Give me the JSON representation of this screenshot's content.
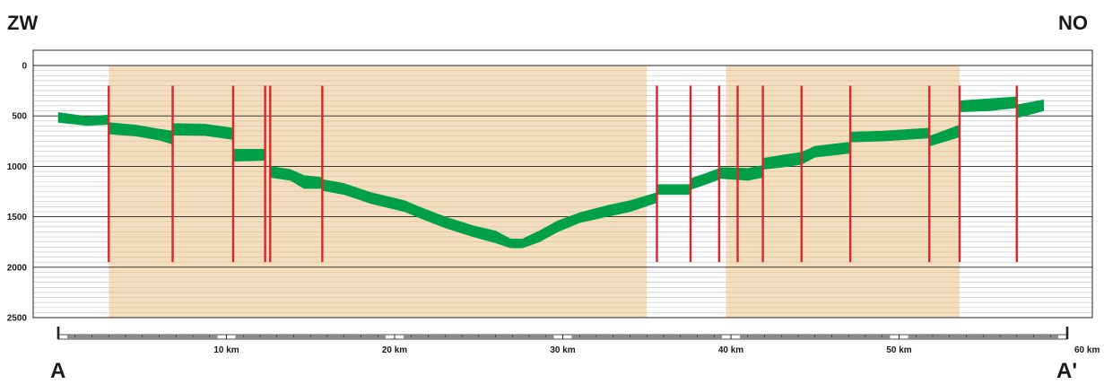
{
  "section": {
    "left_direction": "ZW",
    "right_direction": "NO",
    "left_point": "A",
    "right_point": "A'"
  },
  "depth_axis": {
    "ticks": [
      0,
      500,
      1000,
      1500,
      2000,
      2500
    ],
    "range": [
      0,
      2500
    ],
    "minor_step": 50
  },
  "distance_axis": {
    "range": [
      0,
      60
    ],
    "ticks": [
      {
        "km": 10,
        "label": "10 km"
      },
      {
        "km": 20,
        "label": "20 km"
      },
      {
        "km": 30,
        "label": "30 km"
      },
      {
        "km": 40,
        "label": "40 km"
      },
      {
        "km": 50,
        "label": "50 km"
      },
      {
        "km": 60,
        "label": "60 km"
      }
    ]
  },
  "zones": [
    {
      "from_km": 3.0,
      "to_km": 35.0
    },
    {
      "from_km": 39.7,
      "to_km": 53.6
    }
  ],
  "faults": [
    {
      "km": 3.0,
      "top": 200,
      "bottom": 1950
    },
    {
      "km": 6.8,
      "top": 200,
      "bottom": 1950
    },
    {
      "km": 10.4,
      "top": 200,
      "bottom": 1950
    },
    {
      "km": 12.3,
      "top": 200,
      "bottom": 1950
    },
    {
      "km": 12.6,
      "top": 200,
      "bottom": 1950
    },
    {
      "km": 15.7,
      "top": 200,
      "bottom": 1950
    },
    {
      "km": 35.6,
      "top": 200,
      "bottom": 1950
    },
    {
      "km": 37.6,
      "top": 200,
      "bottom": 1950
    },
    {
      "km": 39.3,
      "top": 200,
      "bottom": 1950
    },
    {
      "km": 40.4,
      "top": 200,
      "bottom": 1950
    },
    {
      "km": 41.9,
      "top": 200,
      "bottom": 1950
    },
    {
      "km": 44.2,
      "top": 200,
      "bottom": 1950
    },
    {
      "km": 47.1,
      "top": 200,
      "bottom": 1950
    },
    {
      "km": 51.8,
      "top": 200,
      "bottom": 1950
    },
    {
      "km": 53.6,
      "top": 200,
      "bottom": 1950
    },
    {
      "km": 57.0,
      "top": 200,
      "bottom": 1950
    }
  ],
  "layer": {
    "segments": [
      [
        [
          0.0,
          465,
          565
        ],
        [
          1.7,
          505,
          595
        ],
        [
          3.0,
          490,
          585
        ]
      ],
      [
        [
          3.0,
          565,
          680
        ],
        [
          4.6,
          590,
          700
        ],
        [
          6.0,
          630,
          740
        ],
        [
          6.8,
          650,
          780
        ]
      ],
      [
        [
          6.8,
          575,
          690
        ],
        [
          8.7,
          580,
          695
        ],
        [
          10.4,
          620,
          735
        ]
      ],
      [
        [
          10.4,
          830,
          950
        ],
        [
          12.3,
          830,
          940
        ]
      ],
      [
        [
          12.6,
          1000,
          1110
        ],
        [
          13.8,
          1030,
          1140
        ],
        [
          14.6,
          1090,
          1220
        ],
        [
          15.7,
          1110,
          1220
        ]
      ],
      [
        [
          15.7,
          1130,
          1240
        ],
        [
          17.0,
          1170,
          1280
        ],
        [
          18.6,
          1260,
          1370
        ],
        [
          20.6,
          1340,
          1450
        ],
        [
          21.6,
          1410,
          1520
        ],
        [
          23.0,
          1500,
          1610
        ],
        [
          24.7,
          1590,
          1700
        ],
        [
          26.0,
          1640,
          1760
        ],
        [
          26.9,
          1720,
          1810
        ],
        [
          27.6,
          1720,
          1810
        ],
        [
          28.6,
          1640,
          1750
        ],
        [
          29.7,
          1540,
          1650
        ],
        [
          31.0,
          1460,
          1560
        ],
        [
          32.6,
          1390,
          1500
        ],
        [
          34.0,
          1340,
          1450
        ],
        [
          35.6,
          1260,
          1360
        ]
      ],
      [
        [
          35.6,
          1180,
          1280
        ],
        [
          37.6,
          1180,
          1280
        ]
      ],
      [
        [
          37.6,
          1120,
          1230
        ],
        [
          38.5,
          1070,
          1180
        ],
        [
          39.3,
          1020,
          1130
        ]
      ],
      [
        [
          39.3,
          1010,
          1120
        ],
        [
          41.0,
          1020,
          1140
        ],
        [
          41.9,
          990,
          1110
        ]
      ],
      [
        [
          41.9,
          920,
          1030
        ],
        [
          43.0,
          890,
          1010
        ],
        [
          44.2,
          860,
          980
        ],
        [
          45.0,
          800,
          910
        ],
        [
          47.1,
          760,
          870
        ]
      ],
      [
        [
          47.1,
          660,
          760
        ],
        [
          49.0,
          650,
          750
        ],
        [
          51.8,
          620,
          720
        ]
      ],
      [
        [
          51.8,
          700,
          800
        ],
        [
          53.6,
          590,
          710
        ]
      ],
      [
        [
          53.6,
          350,
          460
        ],
        [
          55.3,
          330,
          450
        ],
        [
          57.0,
          310,
          420
        ]
      ],
      [
        [
          57.0,
          390,
          520
        ],
        [
          58.6,
          340,
          450
        ]
      ]
    ]
  },
  "colors": {
    "zone_fill": "#f3dfc0",
    "zone_line": "#e6c79d",
    "grid_line": "#bfbfbf",
    "major_line": "#222222",
    "fault": "#e0242c",
    "layer": "#00a04a",
    "frame": "#222222",
    "scale_fill": "#8a8a8a"
  }
}
